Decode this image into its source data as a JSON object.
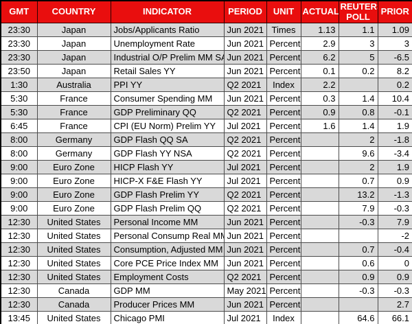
{
  "table": {
    "columns": [
      {
        "key": "gmt",
        "label": "GMT",
        "align": "center"
      },
      {
        "key": "country",
        "label": "COUNTRY",
        "align": "center"
      },
      {
        "key": "indicator",
        "label": "INDICATOR",
        "align": "left"
      },
      {
        "key": "period",
        "label": "PERIOD",
        "align": "left"
      },
      {
        "key": "unit",
        "label": "UNIT",
        "align": "center"
      },
      {
        "key": "actual",
        "label": "ACTUAL",
        "align": "right"
      },
      {
        "key": "poll",
        "label": "REUTERS POLL",
        "align": "right"
      },
      {
        "key": "prior",
        "label": "PRIOR",
        "align": "right"
      }
    ],
    "rows": [
      {
        "gmt": "23:30",
        "country": "Japan",
        "indicator": "Jobs/Applicants Ratio",
        "period": "Jun 2021",
        "unit": "Times",
        "actual": "1.13",
        "poll": "1.1",
        "prior": "1.09"
      },
      {
        "gmt": "23:30",
        "country": "Japan",
        "indicator": "Unemployment Rate",
        "period": "Jun 2021",
        "unit": "Percent",
        "actual": "2.9",
        "poll": "3",
        "prior": "3"
      },
      {
        "gmt": "23:30",
        "country": "Japan",
        "indicator": "Industrial O/P Prelim MM SA",
        "period": "Jun 2021",
        "unit": "Percent",
        "actual": "6.2",
        "poll": "5",
        "prior": "-6.5"
      },
      {
        "gmt": "23:50",
        "country": "Japan",
        "indicator": "Retail Sales YY",
        "period": "Jun 2021",
        "unit": "Percent",
        "actual": "0.1",
        "poll": "0.2",
        "prior": "8.2"
      },
      {
        "gmt": "1:30",
        "country": "Australia",
        "indicator": "PPI YY",
        "period": "Q2 2021",
        "unit": "Index",
        "actual": "2.2",
        "poll": "",
        "prior": "0.2"
      },
      {
        "gmt": "5:30",
        "country": "France",
        "indicator": "Consumer Spending MM",
        "period": "Jun 2021",
        "unit": "Percent",
        "actual": "0.3",
        "poll": "1.4",
        "prior": "10.4"
      },
      {
        "gmt": "5:30",
        "country": "France",
        "indicator": "GDP Preliminary QQ",
        "period": "Q2 2021",
        "unit": "Percent",
        "actual": "0.9",
        "poll": "0.8",
        "prior": "-0.1"
      },
      {
        "gmt": "6:45",
        "country": "France",
        "indicator": "CPI (EU Norm) Prelim YY",
        "period": "Jul 2021",
        "unit": "Percent",
        "actual": "1.6",
        "poll": "1.4",
        "prior": "1.9"
      },
      {
        "gmt": "8:00",
        "country": "Germany",
        "indicator": "GDP Flash QQ SA",
        "period": "Q2 2021",
        "unit": "Percent",
        "actual": "",
        "poll": "2",
        "prior": "-1.8"
      },
      {
        "gmt": "8:00",
        "country": "Germany",
        "indicator": "GDP Flash YY NSA",
        "period": "Q2 2021",
        "unit": "Percent",
        "actual": "",
        "poll": "9.6",
        "prior": "-3.4"
      },
      {
        "gmt": "9:00",
        "country": "Euro Zone",
        "indicator": "HICP Flash YY",
        "period": "Jul 2021",
        "unit": "Percent",
        "actual": "",
        "poll": "2",
        "prior": "1.9"
      },
      {
        "gmt": "9:00",
        "country": "Euro Zone",
        "indicator": "HICP-X F&E Flash YY",
        "period": "Jul 2021",
        "unit": "Percent",
        "actual": "",
        "poll": "0.7",
        "prior": "0.9"
      },
      {
        "gmt": "9:00",
        "country": "Euro Zone",
        "indicator": "GDP Flash Prelim YY",
        "period": "Q2 2021",
        "unit": "Percent",
        "actual": "",
        "poll": "13.2",
        "prior": "-1.3"
      },
      {
        "gmt": "9:00",
        "country": "Euro Zone",
        "indicator": "GDP Flash Prelim QQ",
        "period": "Q2 2021",
        "unit": "Percent",
        "actual": "",
        "poll": "7.9",
        "prior": "-0.3"
      },
      {
        "gmt": "12:30",
        "country": "United States",
        "indicator": "Personal Income MM",
        "period": "Jun 2021",
        "unit": "Percent",
        "actual": "",
        "poll": "-0.3",
        "prior": "7.9"
      },
      {
        "gmt": "12:30",
        "country": "United States",
        "indicator": "Personal Consump Real MM",
        "period": "Jun 2021",
        "unit": "Percent",
        "actual": "",
        "poll": "",
        "prior": "-2"
      },
      {
        "gmt": "12:30",
        "country": "United States",
        "indicator": "Consumption, Adjusted MM",
        "period": "Jun 2021",
        "unit": "Percent",
        "actual": "",
        "poll": "0.7",
        "prior": "-0.4"
      },
      {
        "gmt": "12:30",
        "country": "United States",
        "indicator": "Core PCE Price Index MM",
        "period": "Jun 2021",
        "unit": "Percent",
        "actual": "",
        "poll": "0.6",
        "prior": "0"
      },
      {
        "gmt": "12:30",
        "country": "United States",
        "indicator": "Employment Costs",
        "period": "Q2 2021",
        "unit": "Percent",
        "actual": "",
        "poll": "0.9",
        "prior": "0.9"
      },
      {
        "gmt": "12:30",
        "country": "Canada",
        "indicator": "GDP MM",
        "period": "May 2021",
        "unit": "Percent",
        "actual": "",
        "poll": "-0.3",
        "prior": "-0.3"
      },
      {
        "gmt": "12:30",
        "country": "Canada",
        "indicator": "Producer Prices MM",
        "period": "Jun 2021",
        "unit": "Percent",
        "actual": "",
        "poll": "",
        "prior": "2.7"
      },
      {
        "gmt": "13:45",
        "country": "United States",
        "indicator": "Chicago PMI",
        "period": "Jul 2021",
        "unit": "Index",
        "actual": "",
        "poll": "64.6",
        "prior": "66.1"
      }
    ]
  },
  "colors": {
    "header_bg": "#e90e0e",
    "header_text": "#ffffff",
    "row_bg": "#ffffff",
    "row_alt_bg": "#d9d9d9",
    "border": "#4a4a4a",
    "outer_border": "#000000",
    "cell_text": "#000000"
  }
}
